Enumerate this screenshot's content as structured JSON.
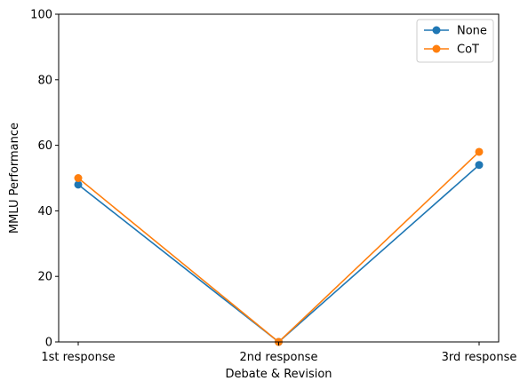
{
  "chart_data": {
    "type": "line",
    "xlabel": "Debate & Revision",
    "ylabel": "MMLU Performance",
    "categories": [
      "1st response",
      "2nd response",
      "3rd response"
    ],
    "ylim": [
      0,
      100
    ],
    "yticks": [
      0,
      20,
      40,
      60,
      80,
      100
    ],
    "grid": false,
    "legend_position": "top-right",
    "series": [
      {
        "name": "None",
        "color": "#1f77b4",
        "values": [
          48,
          0,
          54
        ]
      },
      {
        "name": "CoT",
        "color": "#ff7f0e",
        "values": [
          50,
          0,
          58
        ]
      }
    ]
  }
}
